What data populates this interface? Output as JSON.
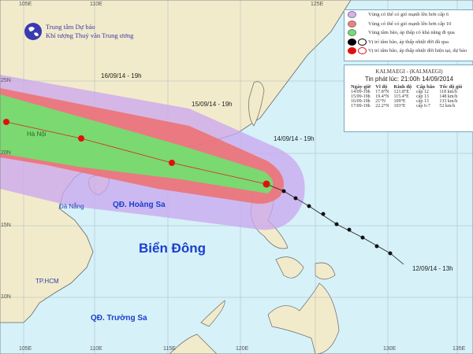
{
  "header": {
    "org_line1": "Trung tâm Dự báo",
    "org_line2": "Khí tượng Thuỷ văn Trung ương"
  },
  "axes": {
    "longitude": [
      "105E",
      "110E",
      "115E",
      "120E",
      "125E",
      "130E",
      "135E"
    ],
    "latitude": [
      "25N",
      "20N",
      "15N",
      "10N"
    ]
  },
  "legend": [
    {
      "text": "Vùng có thể có gió mạnh lên hơn cấp 6",
      "color": "#d8b0f0"
    },
    {
      "text": "Vùng có thể có gió mạnh lên hơn cấp 10",
      "color": "#f08080"
    },
    {
      "text": "Vùng tâm bão, áp thấp có khả năng đi qua",
      "color": "#70e070"
    },
    {
      "text": "Vị trí tâm bão, áp thấp nhiệt đới đã qua",
      "color": "#000000"
    },
    {
      "text": "Vị trí tâm bão, áp thấp nhiệt đới hiện tại, dự báo",
      "color": "#e01010"
    }
  ],
  "storm_info": {
    "title": "KALMAEGI - (KALMAEGI)",
    "issued": "Tin phát lúc: 21:00h 14/09/2014",
    "columns": [
      "Ngày-giờ",
      "Vĩ độ",
      "Kinh độ",
      "Cấp bão",
      "Tốc độ gió"
    ],
    "rows": [
      [
        "14/09-19h",
        "17.8°N",
        "121.8°E",
        "cấp 12",
        "118 km/h"
      ],
      [
        "15/09-19h",
        "19.4°N",
        "115.4°E",
        "cấp 13",
        "148 km/h"
      ],
      [
        "16/09-19h",
        "21°N",
        "109°E",
        "cấp 13",
        "133 km/h"
      ],
      [
        "17/09-19h",
        "22.2°N",
        "103°E",
        "cấp 6-7",
        "52 km/h"
      ]
    ]
  },
  "track_labels": [
    "16/09/14 - 19h",
    "15/09/14 - 19h",
    "14/09/14 - 19h",
    "12/09/14 - 13h"
  ],
  "places": {
    "hanoi": "Hà Nội",
    "danang": "Đà Nẵng",
    "hcm": "TP.HCM",
    "sea": "Biển Đông",
    "paracel": "QĐ. Hoàng Sa",
    "spratly": "QĐ. Trường Sa"
  },
  "colors": {
    "ocean": "#d6f1f8",
    "land": "#f2ebcb",
    "frame": "#f4f0d8"
  }
}
